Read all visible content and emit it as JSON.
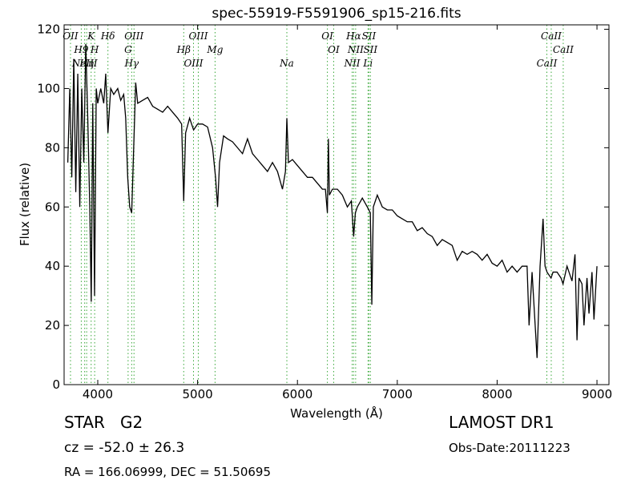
{
  "chart_data": {
    "type": "line",
    "title": "spec-55919-F5591906_sp15-216.fits",
    "xlabel": "Wavelength (Å)",
    "ylabel": "Flux (relative)",
    "xlim": [
      3663,
      9120
    ],
    "ylim": [
      0,
      121.5
    ],
    "xticks": [
      4000,
      5000,
      6000,
      7000,
      8000,
      9000
    ],
    "yticks": [
      0,
      20,
      40,
      60,
      80,
      100,
      120
    ],
    "grid": false,
    "color": "#000000",
    "marker_color": "#3aa83a",
    "x": [
      3700,
      3720,
      3740,
      3760,
      3780,
      3800,
      3820,
      3840,
      3860,
      3880,
      3900,
      3920,
      3935,
      3950,
      3968,
      3985,
      4000,
      4030,
      4060,
      4080,
      4102,
      4130,
      4160,
      4200,
      4230,
      4260,
      4280,
      4300,
      4320,
      4340,
      4360,
      4380,
      4400,
      4450,
      4500,
      4550,
      4600,
      4650,
      4700,
      4750,
      4800,
      4840,
      4861,
      4880,
      4920,
      4960,
      5000,
      5050,
      5100,
      5150,
      5180,
      5200,
      5220,
      5260,
      5300,
      5350,
      5400,
      5450,
      5500,
      5550,
      5600,
      5650,
      5700,
      5750,
      5800,
      5850,
      5880,
      5894,
      5910,
      5950,
      6000,
      6050,
      6100,
      6150,
      6200,
      6250,
      6280,
      6300,
      6310,
      6320,
      6350,
      6400,
      6450,
      6500,
      6540,
      6563,
      6580,
      6600,
      6650,
      6700,
      6730,
      6745,
      6760,
      6800,
      6850,
      6900,
      6950,
      7000,
      7050,
      7100,
      7150,
      7200,
      7250,
      7300,
      7350,
      7400,
      7450,
      7500,
      7550,
      7600,
      7650,
      7700,
      7750,
      7800,
      7850,
      7900,
      7950,
      8000,
      8050,
      8100,
      8150,
      8200,
      8250,
      8300,
      8320,
      8350,
      8400,
      8430,
      8460,
      8480,
      8500,
      8540,
      8560,
      8600,
      8640,
      8660,
      8700,
      8750,
      8780,
      8800,
      8820,
      8850,
      8870,
      8900,
      8920,
      8950,
      8970,
      9000
    ],
    "values": [
      75,
      100,
      70,
      110,
      65,
      105,
      60,
      100,
      75,
      115,
      90,
      60,
      28,
      95,
      30,
      100,
      95,
      100,
      95,
      105,
      85,
      100,
      98,
      100,
      96,
      98,
      90,
      70,
      60,
      58,
      80,
      102,
      95,
      96,
      97,
      94,
      93,
      92,
      94,
      92,
      90,
      88,
      62,
      85,
      90,
      86,
      88,
      88,
      87,
      80,
      70,
      60,
      75,
      84,
      83,
      82,
      80,
      78,
      83,
      78,
      76,
      74,
      72,
      75,
      72,
      66,
      72,
      90,
      75,
      76,
      74,
      72,
      70,
      70,
      68,
      66,
      66,
      58,
      83,
      64,
      66,
      66,
      64,
      60,
      62,
      50,
      58,
      60,
      63,
      60,
      58,
      27,
      60,
      64,
      60,
      59,
      59,
      57,
      56,
      55,
      55,
      52,
      53,
      51,
      50,
      47,
      49,
      48,
      47,
      42,
      45,
      44,
      45,
      44,
      42,
      44,
      41,
      40,
      42,
      38,
      40,
      38,
      40,
      40,
      20,
      38,
      9,
      40,
      56,
      40,
      38,
      36,
      38,
      38,
      36,
      34,
      40,
      35,
      44,
      15,
      36,
      34,
      20,
      36,
      24,
      38,
      22,
      40
    ],
    "line_markers": [
      {
        "label": "OII",
        "wavelength": 3727
      },
      {
        "label": "H9",
        "wavelength": 3835
      },
      {
        "label": "Hη",
        "wavelength": 3889
      },
      {
        "label": "K",
        "wavelength": 3934
      },
      {
        "label": "H",
        "wavelength": 3969
      },
      {
        "label": "NeIII",
        "wavelength": 3869
      },
      {
        "label": "Hδ",
        "wavelength": 4102
      },
      {
        "label": "G",
        "wavelength": 4304
      },
      {
        "label": "Hγ",
        "wavelength": 4340
      },
      {
        "label": "OIII",
        "wavelength": 4363
      },
      {
        "label": "Hβ",
        "wavelength": 4861
      },
      {
        "label": "OIII",
        "wavelength": 4959
      },
      {
        "label": "OIII",
        "wavelength": 5007
      },
      {
        "label": "Mg",
        "wavelength": 5175
      },
      {
        "label": "Na",
        "wavelength": 5894
      },
      {
        "label": "OI",
        "wavelength": 6300
      },
      {
        "label": "OI",
        "wavelength": 6363
      },
      {
        "label": "NII",
        "wavelength": 6548
      },
      {
        "label": "Hα",
        "wavelength": 6563
      },
      {
        "label": "NII",
        "wavelength": 6583
      },
      {
        "label": "Li",
        "wavelength": 6707
      },
      {
        "label": "SII",
        "wavelength": 6716
      },
      {
        "label": "SII",
        "wavelength": 6731
      },
      {
        "label": "CaII",
        "wavelength": 8498
      },
      {
        "label": "CaII",
        "wavelength": 8542
      },
      {
        "label": "CaII",
        "wavelength": 8662
      }
    ],
    "info": {
      "object": "STAR   G2",
      "cz": "cz = -52.0 ± 26.3",
      "coords": "RA = 166.06999, DEC = 51.50695",
      "survey": "LAMOST DR1",
      "date": "Obs-Date:20111223"
    }
  }
}
